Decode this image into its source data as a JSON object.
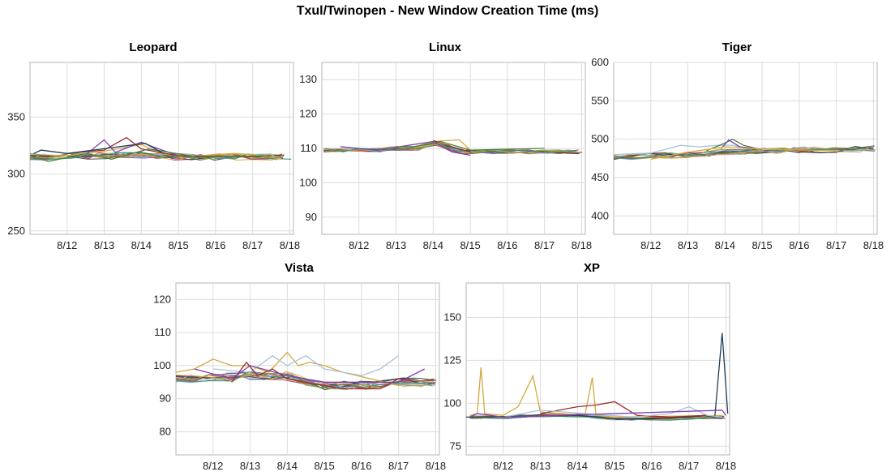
{
  "title": "Txul/Twinopen - New Window Creation Time (ms)",
  "palette": [
    "#d4a93c",
    "#9c2e2e",
    "#4f7f3a",
    "#7a3fb0",
    "#1f3f5a",
    "#a7c4dc",
    "#c0392b",
    "#3d3d3d",
    "#6d9fd1",
    "#8aa63c",
    "#e69a4c",
    "#2e8b57"
  ],
  "charts": [
    {
      "title": "Leopard",
      "x_ticks": [
        "8/12",
        "8/13",
        "8/14",
        "8/15",
        "8/16",
        "8/17",
        "8/18"
      ],
      "y_ticks": [
        "250",
        "300",
        "350"
      ],
      "ylim": [
        247,
        398
      ],
      "xlim": [
        11,
        18.1
      ],
      "baseline": [
        [
          11.0,
          315
        ],
        [
          11.5,
          315
        ],
        [
          12.0,
          316
        ],
        [
          12.5,
          316
        ],
        [
          13.0,
          316
        ],
        [
          13.5,
          316
        ],
        [
          14.0,
          317
        ],
        [
          14.5,
          316
        ],
        [
          15.0,
          315
        ],
        [
          15.5,
          315
        ],
        [
          16.0,
          315
        ],
        [
          16.5,
          315
        ],
        [
          17.0,
          315
        ],
        [
          17.5,
          315
        ],
        [
          17.9,
          315
        ]
      ],
      "noise": 3,
      "extra": [
        {
          "s": 0,
          "pts": [
            [
              11.5,
              314
            ],
            [
              13.0,
              320
            ],
            [
              14.0,
              326
            ],
            [
              14.5,
              318
            ],
            [
              15.5,
              316
            ],
            [
              16.5,
              318
            ],
            [
              17.0,
              317
            ],
            [
              17.8,
              313
            ]
          ]
        },
        {
          "s": 1,
          "pts": [
            [
              12.0,
              318
            ],
            [
              13.0,
              321
            ],
            [
              13.6,
              332
            ],
            [
              14.0,
              322
            ],
            [
              15.0,
              316
            ],
            [
              17.0,
              315
            ]
          ]
        },
        {
          "s": 3,
          "pts": [
            [
              12.5,
              317
            ],
            [
              13.0,
              330
            ],
            [
              13.3,
              319
            ],
            [
              14.0,
              328
            ],
            [
              14.3,
              324
            ],
            [
              15.0,
              316
            ]
          ]
        },
        {
          "s": 2,
          "pts": [
            [
              11.0,
              316
            ],
            [
              11.5,
              311
            ],
            [
              12.5,
              318
            ],
            [
              13.2,
              313
            ],
            [
              14.2,
              322
            ],
            [
              15.5,
              315
            ],
            [
              17.5,
              316
            ]
          ]
        },
        {
          "s": 4,
          "pts": [
            [
              11.1,
              318
            ],
            [
              11.3,
              321
            ],
            [
              12.0,
              318
            ],
            [
              14.1,
              327
            ],
            [
              14.6,
              318
            ]
          ]
        }
      ]
    },
    {
      "title": "Linux",
      "x_ticks": [
        "8/12",
        "8/13",
        "8/14",
        "8/15",
        "8/16",
        "8/17",
        "8/18"
      ],
      "y_ticks": [
        "90",
        "100",
        "110",
        "120",
        "130"
      ],
      "ylim": [
        85,
        135
      ],
      "xlim": [
        11,
        18.1
      ],
      "baseline": [
        [
          11.0,
          109.5
        ],
        [
          11.5,
          109.5
        ],
        [
          12.0,
          109.5
        ],
        [
          12.5,
          109.5
        ],
        [
          13.0,
          110
        ],
        [
          13.5,
          110
        ],
        [
          14.0,
          111.5
        ],
        [
          14.3,
          110.5
        ],
        [
          14.7,
          109
        ],
        [
          15.0,
          109
        ],
        [
          15.5,
          109
        ],
        [
          16.0,
          109
        ],
        [
          16.5,
          109
        ],
        [
          17.0,
          109
        ],
        [
          17.5,
          109
        ],
        [
          17.9,
          109
        ]
      ],
      "noise": 0.6,
      "extra": [
        {
          "s": 0,
          "pts": [
            [
              13.5,
              110
            ],
            [
              14.0,
              112
            ],
            [
              14.7,
              112.5
            ],
            [
              15.0,
              109.5
            ]
          ]
        },
        {
          "s": 3,
          "pts": [
            [
              11.5,
              110.5
            ],
            [
              12.5,
              109.5
            ],
            [
              14.0,
              112
            ],
            [
              14.5,
              109
            ],
            [
              15.0,
              108
            ]
          ]
        },
        {
          "s": 2,
          "pts": [
            [
              13.0,
              110.5
            ],
            [
              13.5,
              110.5
            ],
            [
              14.2,
              112
            ],
            [
              15.0,
              109.5
            ],
            [
              17.0,
              110
            ]
          ]
        },
        {
          "s": 1,
          "pts": [
            [
              14.0,
              112.3
            ],
            [
              14.5,
              110.5
            ],
            [
              15.0,
              109
            ]
          ]
        }
      ]
    },
    {
      "title": "Tiger",
      "x_ticks": [
        "8/12",
        "8/13",
        "8/14",
        "8/15",
        "8/16",
        "8/17",
        "8/18"
      ],
      "y_ticks": [
        "400",
        "450",
        "500",
        "550",
        "600"
      ],
      "ylim": [
        376,
        600
      ],
      "xlim": [
        11,
        18.1
      ],
      "baseline": [
        [
          11.0,
          476
        ],
        [
          11.5,
          477
        ],
        [
          12.0,
          478
        ],
        [
          12.5,
          479
        ],
        [
          13.0,
          479
        ],
        [
          13.5,
          480
        ],
        [
          14.0,
          483
        ],
        [
          14.5,
          484
        ],
        [
          15.0,
          485
        ],
        [
          15.5,
          485
        ],
        [
          16.0,
          486
        ],
        [
          16.5,
          486
        ],
        [
          17.0,
          486
        ],
        [
          17.5,
          487
        ],
        [
          17.9,
          488
        ]
      ],
      "noise": 4,
      "extra": [
        {
          "s": 5,
          "pts": [
            [
              11.0,
              480
            ],
            [
              12.0,
              482
            ],
            [
              12.5,
              488
            ],
            [
              12.8,
              492
            ],
            [
              13.3,
              490
            ],
            [
              13.8,
              492
            ],
            [
              14.2,
              492
            ],
            [
              14.6,
              488
            ],
            [
              15.5,
              487
            ]
          ]
        },
        {
          "s": 2,
          "pts": [
            [
              13.5,
              485
            ],
            [
              14.0,
              495
            ],
            [
              14.2,
              500
            ],
            [
              14.5,
              492
            ],
            [
              15.0,
              486
            ]
          ]
        },
        {
          "s": 3,
          "pts": [
            [
              13.9,
              488
            ],
            [
              14.1,
              499
            ],
            [
              14.4,
              490
            ],
            [
              15.0,
              487
            ]
          ]
        },
        {
          "s": 0,
          "pts": [
            [
              12.0,
              474
            ],
            [
              13.0,
              483
            ],
            [
              14.0,
              490
            ],
            [
              15.0,
              487
            ],
            [
              17.0,
              485
            ]
          ]
        }
      ]
    },
    {
      "title": "Vista",
      "x_ticks": [
        "8/12",
        "8/13",
        "8/14",
        "8/15",
        "8/16",
        "8/17",
        "8/18"
      ],
      "y_ticks": [
        "80",
        "90",
        "100",
        "110",
        "120"
      ],
      "ylim": [
        73,
        125
      ],
      "xlim": [
        11,
        18.1
      ],
      "baseline": [
        [
          11.0,
          96
        ],
        [
          11.5,
          96
        ],
        [
          12.0,
          96
        ],
        [
          12.5,
          96.5
        ],
        [
          13.0,
          97
        ],
        [
          13.5,
          97
        ],
        [
          14.0,
          97
        ],
        [
          14.5,
          95
        ],
        [
          15.0,
          94
        ],
        [
          15.5,
          94
        ],
        [
          16.0,
          94
        ],
        [
          16.5,
          94.5
        ],
        [
          17.0,
          95
        ],
        [
          17.5,
          95
        ],
        [
          17.9,
          95
        ]
      ],
      "noise": 1.3,
      "extra": [
        {
          "s": 0,
          "pts": [
            [
              11.0,
              98
            ],
            [
              11.5,
              99
            ],
            [
              12.0,
              102
            ],
            [
              12.5,
              100
            ],
            [
              13.0,
              100
            ],
            [
              13.5,
              98
            ],
            [
              14.0,
              104
            ],
            [
              14.3,
              100
            ],
            [
              14.6,
              101
            ],
            [
              15.0,
              100
            ],
            [
              15.5,
              98
            ],
            [
              17.0,
              94
            ]
          ]
        },
        {
          "s": 5,
          "pts": [
            [
              12.0,
              99
            ],
            [
              13.0,
              98
            ],
            [
              13.6,
              103
            ],
            [
              14.0,
              100
            ],
            [
              14.5,
              103
            ],
            [
              15.0,
              99
            ],
            [
              16.0,
              97
            ],
            [
              16.5,
              99
            ],
            [
              17.0,
              103
            ]
          ]
        },
        {
          "s": 1,
          "pts": [
            [
              12.5,
              95
            ],
            [
              12.9,
              101
            ],
            [
              13.2,
              97
            ],
            [
              13.6,
              99
            ],
            [
              14.0,
              96
            ],
            [
              15.5,
              93
            ],
            [
              16.5,
              93
            ],
            [
              17.0,
              96
            ],
            [
              17.5,
              95
            ]
          ]
        },
        {
          "s": 3,
          "pts": [
            [
              11.5,
              99
            ],
            [
              12.5,
              96
            ],
            [
              13.0,
              100
            ],
            [
              14.0,
              97
            ],
            [
              15.0,
              95
            ],
            [
              17.0,
              95
            ],
            [
              17.7,
              99
            ]
          ]
        }
      ]
    },
    {
      "title": "XP",
      "x_ticks": [
        "8/12",
        "8/13",
        "8/14",
        "8/15",
        "8/16",
        "8/17",
        "8/18"
      ],
      "y_ticks": [
        "75",
        "100",
        "125",
        "150"
      ],
      "ylim": [
        70,
        170
      ],
      "xlim": [
        11,
        18.1
      ],
      "baseline": [
        [
          11.0,
          92
        ],
        [
          11.5,
          92
        ],
        [
          12.0,
          92
        ],
        [
          12.5,
          92.5
        ],
        [
          13.0,
          93
        ],
        [
          13.5,
          93
        ],
        [
          14.0,
          93
        ],
        [
          14.5,
          92
        ],
        [
          15.0,
          91
        ],
        [
          15.5,
          91
        ],
        [
          16.0,
          91
        ],
        [
          16.5,
          91
        ],
        [
          17.0,
          91.5
        ],
        [
          17.5,
          92
        ],
        [
          17.9,
          92
        ]
      ],
      "noise": 0.9,
      "extra": [
        {
          "s": 0,
          "pts": [
            [
              11.1,
              93
            ],
            [
              11.3,
              94
            ],
            [
              11.4,
              121
            ],
            [
              11.5,
              94
            ],
            [
              12.0,
              93
            ],
            [
              12.4,
              98
            ],
            [
              12.8,
              116
            ],
            [
              13.0,
              95
            ],
            [
              14.2,
              93
            ],
            [
              14.4,
              115
            ],
            [
              14.5,
              93
            ],
            [
              15.0,
              92
            ],
            [
              17.9,
              93
            ]
          ]
        },
        {
          "s": 4,
          "pts": [
            [
              11.0,
              92
            ],
            [
              14.0,
              93
            ],
            [
              15.0,
              91
            ],
            [
              16.0,
              91
            ],
            [
              17.0,
              92
            ],
            [
              17.4,
              93
            ],
            [
              17.7,
              92
            ],
            [
              17.9,
              141
            ],
            [
              18.05,
              94
            ]
          ]
        },
        {
          "s": 1,
          "pts": [
            [
              13.0,
              94
            ],
            [
              14.0,
              98
            ],
            [
              14.5,
              99
            ],
            [
              15.0,
              101
            ],
            [
              15.6,
              93
            ],
            [
              16.5,
              92
            ],
            [
              17.5,
              93
            ]
          ]
        },
        {
          "s": 5,
          "pts": [
            [
              12.0,
              92
            ],
            [
              13.0,
              96
            ],
            [
              15.5,
              92
            ],
            [
              16.5,
              94
            ],
            [
              17.0,
              98
            ],
            [
              17.5,
              93
            ],
            [
              17.9,
              92
            ]
          ]
        },
        {
          "s": 3,
          "pts": [
            [
              11.1,
              92
            ],
            [
              11.3,
              94
            ],
            [
              12.0,
              92
            ],
            [
              17.9,
              96
            ],
            [
              18.0,
              93
            ]
          ]
        }
      ]
    }
  ]
}
